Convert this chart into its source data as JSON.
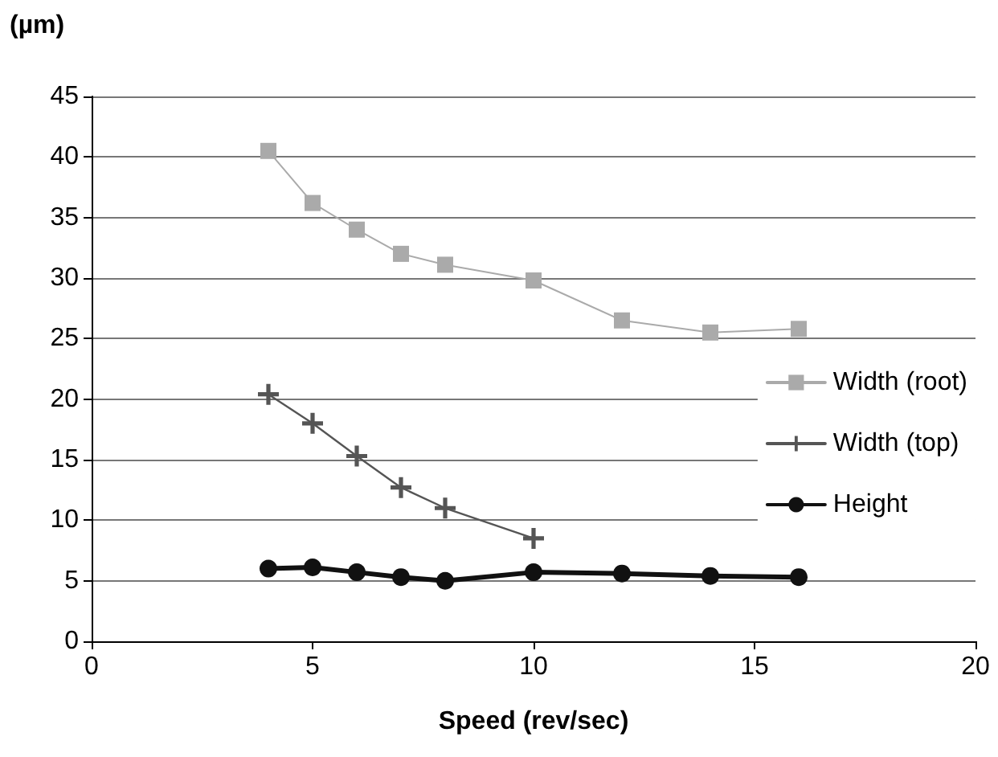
{
  "chart_data": {
    "type": "line",
    "ylabel": "(µm)",
    "xlabel": "Speed (rev/sec)",
    "xlim": [
      0,
      20
    ],
    "xticks": [
      0,
      5,
      10,
      15,
      20
    ],
    "ylim": [
      0,
      45
    ],
    "yticks": [
      0,
      5,
      10,
      15,
      20,
      25,
      30,
      35,
      40,
      45
    ],
    "grid": "y",
    "legend": "right",
    "line_style": "solid",
    "series": [
      {
        "name": "Width (root)",
        "color": "#aaaaaa",
        "marker": "square",
        "x": [
          4,
          5,
          6,
          7,
          8,
          10,
          12,
          14,
          16
        ],
        "values": [
          40.5,
          36.2,
          34.0,
          32.0,
          31.1,
          29.8,
          26.5,
          25.5,
          25.8
        ]
      },
      {
        "name": "Width (top)",
        "color": "#555555",
        "marker": "cross",
        "x": [
          4,
          5,
          6,
          7,
          8,
          10
        ],
        "values": [
          20.4,
          18.0,
          15.3,
          12.7,
          11.0,
          8.5
        ]
      },
      {
        "name": "Height",
        "color": "#111111",
        "marker": "circle",
        "x": [
          4,
          5,
          6,
          7,
          8,
          10,
          12,
          14,
          16
        ],
        "values": [
          6.0,
          6.1,
          5.7,
          5.3,
          5.0,
          5.7,
          5.6,
          5.4,
          5.3
        ]
      }
    ]
  }
}
